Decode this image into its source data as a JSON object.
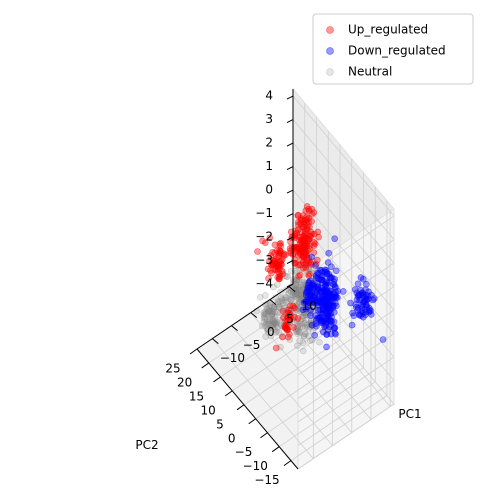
{
  "chart_data": {
    "type": "scatter",
    "projection": "3d",
    "title": "",
    "axes": {
      "x": {
        "label": "PC1",
        "ticks": [
          -15,
          -10,
          -5,
          0,
          5,
          10,
          15,
          20,
          25
        ],
        "lim": [
          -18,
          25
        ]
      },
      "y": {
        "label": "PC2",
        "ticks": [
          -10,
          -5,
          0,
          5,
          10
        ],
        "lim": [
          -14,
          11
        ]
      },
      "z": {
        "label": "",
        "ticks": [
          -4,
          -3,
          -2,
          -1,
          0,
          1,
          2,
          3,
          4
        ],
        "lim": [
          -4,
          4.3
        ]
      }
    },
    "grid": true,
    "legend_position": "top-right",
    "series": [
      {
        "name": "Up_regulated",
        "color": "#ff0000",
        "alpha": 0.4,
        "clusters": [
          {
            "x_range": [
              -5,
              3
            ],
            "y_range": [
              -6,
              2
            ],
            "z_range": [
              0.5,
              4.2
            ],
            "count": 150
          },
          {
            "x_range": [
              0,
              4
            ],
            "y_range": [
              -11,
              -4
            ],
            "z_range": [
              0,
              3.4
            ],
            "count": 60
          },
          {
            "x_range": [
              3,
              6
            ],
            "y_range": [
              -5,
              0
            ],
            "z_range": [
              -2.7,
              -0.5
            ],
            "count": 30
          }
        ],
        "points": [
          {
            "x": -6,
            "y": -3,
            "z": 4.2
          },
          {
            "x": 2,
            "y": -11,
            "z": 3.0
          },
          {
            "x": 2.5,
            "y": -12,
            "z": 2.6
          },
          {
            "x": 6,
            "y": -5,
            "z": -2.7
          }
        ]
      },
      {
        "name": "Down_regulated",
        "color": "#0000ff",
        "alpha": 0.4,
        "clusters": [
          {
            "x_range": [
              -8,
              4
            ],
            "y_range": [
              0,
              6
            ],
            "z_range": [
              -2.5,
              1.5
            ],
            "count": 200
          },
          {
            "x_range": [
              -14,
              -6
            ],
            "y_range": [
              4,
              11
            ],
            "z_range": [
              -1.5,
              1.0
            ],
            "count": 60
          },
          {
            "x_range": [
              4,
              9
            ],
            "y_range": [
              2,
              6
            ],
            "z_range": [
              -2.5,
              -0.5
            ],
            "count": 40
          }
        ],
        "points": [
          {
            "x": -15,
            "y": 10,
            "z": -1.5
          },
          {
            "x": 5,
            "y": 7,
            "z": -3.0
          },
          {
            "x": -14,
            "y": -2,
            "z": 4.0
          }
        ]
      },
      {
        "name": "Neutral",
        "color": "#808080",
        "alpha": 0.2,
        "clusters": [
          {
            "x_range": [
              0,
              14
            ],
            "y_range": [
              -5,
              8
            ],
            "z_range": [
              -3.8,
              0.5
            ],
            "count": 260
          },
          {
            "x_range": [
              8,
              18
            ],
            "y_range": [
              -5,
              1
            ],
            "z_range": [
              -3.8,
              -1.5
            ],
            "count": 80
          }
        ]
      }
    ]
  }
}
